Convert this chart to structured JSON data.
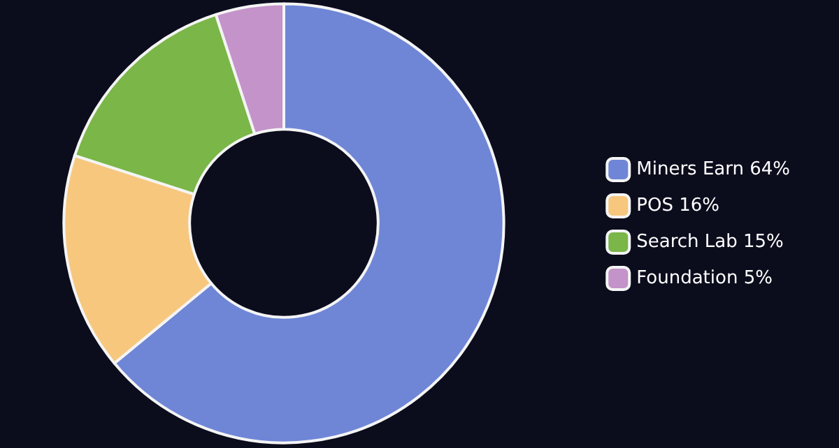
{
  "chart_data": {
    "type": "donut",
    "categories": [
      "Miners Earn 64%",
      "POS 16%",
      "Search Lab 15%",
      "Foundation 5%"
    ],
    "values": [
      64,
      16,
      15,
      5
    ],
    "colors": [
      "#6f86d6",
      "#f7c77e",
      "#7ab648",
      "#c393c9"
    ],
    "legend": "right"
  }
}
